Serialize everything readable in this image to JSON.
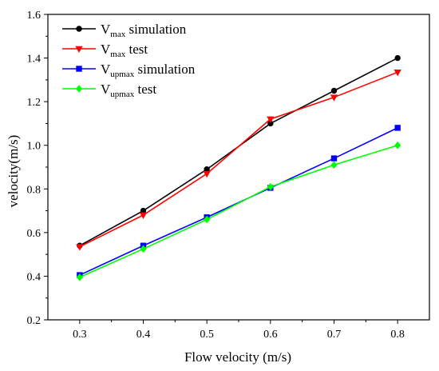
{
  "chart_data": {
    "type": "line",
    "xlabel": "Flow velocity (m/s)",
    "ylabel": "velocity(m/s)",
    "xlim": [
      0.25,
      0.85
    ],
    "ylim": [
      0.2,
      1.6
    ],
    "x": [
      0.3,
      0.4,
      0.5,
      0.6,
      0.7,
      0.8
    ],
    "x_ticks": [
      "0.3",
      "0.4",
      "0.5",
      "0.6",
      "0.7",
      "0.8"
    ],
    "y_ticks": [
      "0.2",
      "0.4",
      "0.6",
      "0.8",
      "1.0",
      "1.2",
      "1.4",
      "1.6"
    ],
    "grid": false,
    "legend_position": "top-left",
    "series": [
      {
        "base": "V",
        "sub": "max",
        "suffix": " simulation",
        "color": "#000000",
        "marker": "circle",
        "values": [
          0.54,
          0.7,
          0.89,
          1.1,
          1.25,
          1.4
        ]
      },
      {
        "base": "V",
        "sub": "max",
        "suffix": " test",
        "color": "#ff0000",
        "marker": "triangle-down",
        "values": [
          0.535,
          0.68,
          0.87,
          1.12,
          1.22,
          1.335
        ]
      },
      {
        "base": "V",
        "sub": "upmax",
        "suffix": " simulation",
        "color": "#0000ff",
        "marker": "square",
        "values": [
          0.405,
          0.54,
          0.67,
          0.805,
          0.94,
          1.08
        ]
      },
      {
        "base": "V",
        "sub": "upmax",
        "suffix": " test",
        "color": "#00ff00",
        "marker": "diamond",
        "values": [
          0.395,
          0.525,
          0.66,
          0.81,
          0.91,
          1.0
        ]
      }
    ]
  }
}
